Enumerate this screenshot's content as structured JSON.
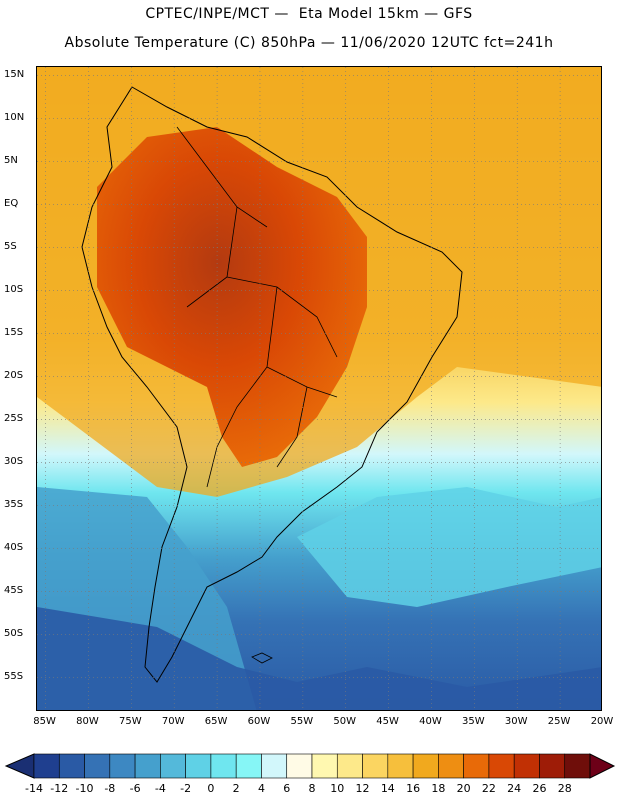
{
  "header": {
    "line1": "CPTEC/INPE/MCT —  Eta Model 15km — GFS",
    "line2": "Absolute Temperature (C) 850hPa — 11/06/2020 12UTC fct=241h"
  },
  "axes": {
    "lat_labels": [
      "15N",
      "10N",
      "5N",
      "EQ",
      "5S",
      "10S",
      "15S",
      "20S",
      "25S",
      "30S",
      "35S",
      "40S",
      "45S",
      "50S",
      "55S"
    ],
    "lon_labels": [
      "85W",
      "80W",
      "75W",
      "70W",
      "65W",
      "60W",
      "55W",
      "50W",
      "45W",
      "40W",
      "35W",
      "30W",
      "25W",
      "20W"
    ],
    "lat_range": [
      16,
      -59
    ],
    "lon_range": [
      -86,
      -20
    ]
  },
  "colorbar": {
    "labels": [
      "-14",
      "-12",
      "-10",
      "-8",
      "-6",
      "-4",
      "-2",
      "0",
      "2",
      "4",
      "6",
      "8",
      "10",
      "12",
      "14",
      "16",
      "18",
      "20",
      "22",
      "24",
      "26",
      "28"
    ],
    "colors": [
      "#1f3f8f",
      "#2a5aa5",
      "#3572b5",
      "#3d88c2",
      "#45a0cd",
      "#54b9da",
      "#5fd1e6",
      "#6fe6ef",
      "#86f6f6",
      "#d2f7fb",
      "#fffbe6",
      "#fff8b0",
      "#fde98a",
      "#fbd561",
      "#f6bf3c",
      "#f1a91e",
      "#ee8e12",
      "#e86a08",
      "#d94805",
      "#c13004",
      "#9e1c07",
      "#6f0e0a"
    ],
    "arrow_low_color": "#1a2f73",
    "arrow_high_color": "#6d0018"
  },
  "map": {
    "colors": {
      "ocean_warm": "#f2b32a",
      "ocean_mid": "#f6c640",
      "hot_land": "#d8561a",
      "very_hot": "#b33a10",
      "cold": "#2c62ad",
      "cool": "#5cc3df",
      "border": "#000000",
      "grid": "#7a7a7a"
    }
  }
}
